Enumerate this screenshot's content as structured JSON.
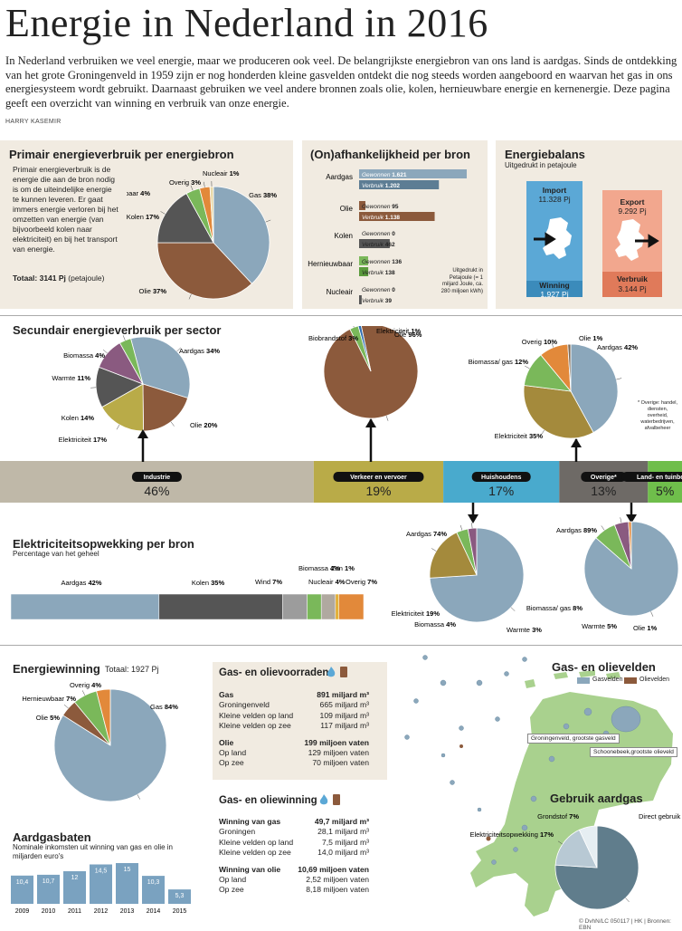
{
  "header": {
    "title": "Energie in Nederland in 2016",
    "intro": "In Nederland verbruiken we veel energie, maar we produceren ook veel. De belangrijkste energiebron van ons land is aardgas. Sinds de ontdekking van het grote Groningenveld in 1959 zijn er nog honderden kleine gasvelden ontdekt die nog steeds worden aangeboord en waarvan het gas in ons energiesysteem wordt gebruikt. Daarnaast gebruiken we veel andere bronnen zoals olie, kolen, hernieuwbare energie en kernenergie. Deze pagina geeft een overzicht van winning en verbruik van onze energie.",
    "byline": "HARRY KASEMIR"
  },
  "primair": {
    "title": "Primair energieverbruik per energiebron",
    "text": "Primair energieverbruik is de energie die aan de bron nodig is om de uiteindelijke energie te kunnen leveren. Er gaat immers energie verloren bij het omzetten van energie (van bijvoorbeeld kolen naar elektriciteit) en bij het transport van energie.",
    "total_label": "Totaal: 3141 Pj",
    "total_unit": "(petajoule)"
  },
  "onafh": {
    "title": "(On)afhankelijkheid per bron",
    "note": "Uitgedrukt in Petajoule (= 1 miljard Joule, ca. 280 miljoen kWh)"
  },
  "balans": {
    "title": "Energiebalans",
    "subtitle": "Uitgedrukt in petajoule",
    "import_label": "Import",
    "import_value": "11.328 Pj",
    "winning_label": "Winning",
    "winning_value": "1.927 Pj",
    "export_label": "Export",
    "export_value": "9.292 Pj",
    "verbruik_label": "Verbruik",
    "verbruik_value": "3.144 Pj"
  },
  "secundair": {
    "title": "Secundair energieverbruik per sector",
    "footnote": "* Overige: handel, diensten, overheid, waterbedrijven, afvalbeheer"
  },
  "elek": {
    "title": "Elektriciteitsopwekking per bron",
    "subtitle": "Percentage van het geheel"
  },
  "winning": {
    "title": "Energiewinning",
    "total": "Totaal: 1927 Pj"
  },
  "baten": {
    "title": "Aardgasbaten",
    "subtitle": "Nominale inkomsten uit winning van gas en olie in miljarden euro's"
  },
  "voorraden": {
    "title": "Gas- en olievoorraden",
    "rows": [
      {
        "label": "Gas",
        "value": "891 miljard m³",
        "bold": true
      },
      {
        "label": "Groningenveld",
        "value": "665 miljard m³"
      },
      {
        "label": "Kleine velden op land",
        "value": "109 miljard m³"
      },
      {
        "label": "Kleine velden op zee",
        "value": "117 miljard m³"
      },
      {
        "label": "Olie",
        "value": "199 miljoen vaten",
        "bold": true,
        "gap": true
      },
      {
        "label": "Op land",
        "value": "129 miljoen vaten"
      },
      {
        "label": "Op zee",
        "value": "70 miljoen vaten"
      }
    ]
  },
  "oliewinning": {
    "title": "Gas- en oliewinning",
    "rows": [
      {
        "label": "Winning van gas",
        "value": "49,7 miljard m³",
        "bold": true
      },
      {
        "label": "Groningen",
        "value": "28,1 miljard m³"
      },
      {
        "label": "Kleine velden op land",
        "value": "7,5 miljard m³"
      },
      {
        "label": "Kleine velden op zee",
        "value": "14,0 miljard m³"
      },
      {
        "label": "Winning van olie",
        "value": "10,69 miljoen vaten",
        "bold": true,
        "gap": true
      },
      {
        "label": "Op land",
        "value": "2,52 miljoen vaten"
      },
      {
        "label": "Op zee",
        "value": "8,18 miljoen vaten"
      }
    ]
  },
  "map": {
    "title": "Gas- en olievelden",
    "legend_gas": "Gasvelden",
    "legend_oil": "Olievelden",
    "label_groningen": "Groningenveld, grootste gasveld",
    "label_schoonebeek": "Schoonebeek,grootste olieveld",
    "gebruik_title": "Gebruik aardgas"
  },
  "credits": "© DvhN/LC 050117 | HK | Bronnen: EBN",
  "colors": {
    "gas": "#8ba7bb",
    "oil": "#8c5a3c",
    "coal": "#555555",
    "renew": "#7ab85a",
    "nuclear": "#e2893a",
    "other": "#a7a06a",
    "beige": "#f1ebe1"
  },
  "chart_data": [
    {
      "type": "pie",
      "title": "Primair energieverbruik per energiebron",
      "labels": [
        "Gas",
        "Olie",
        "Kolen",
        "Hernieuwbaar",
        "Overig",
        "Nucleair"
      ],
      "values": [
        38,
        37,
        17,
        4,
        3,
        1
      ],
      "value_labels": [
        "38%",
        "37%",
        "17%",
        "4%",
        "3%",
        "1%"
      ]
    },
    {
      "type": "bar",
      "title": "(On)afhankelijkheid per bron",
      "categories": [
        "Aardgas",
        "Olie",
        "Kolen",
        "Hernieuwbaar",
        "Nucleair"
      ],
      "series": [
        {
          "name": "Gewonnen",
          "values": [
            1621,
            95,
            0,
            136,
            0
          ],
          "value_labels": [
            "1.621",
            "95",
            "0",
            "136",
            "0"
          ]
        },
        {
          "name": "Verbruik",
          "values": [
            1202,
            1138,
            462,
            138,
            39
          ],
          "value_labels": [
            "1.202",
            "1.138",
            "462",
            "138",
            "39"
          ]
        }
      ]
    },
    {
      "type": "bar",
      "title": "Secundair energieverbruik per sector",
      "categories": [
        "Industrie",
        "Verkeer en vervoer",
        "Huishoudens",
        "Overige*",
        "Land- en tuinbouw"
      ],
      "values": [
        46,
        19,
        17,
        13,
        5
      ],
      "value_labels": [
        "46%",
        "19%",
        "17%",
        "13%",
        "5%"
      ]
    },
    {
      "type": "pie",
      "title": "Industrie",
      "labels": [
        "Aardgas",
        "Olie",
        "Elektriciteit",
        "Kolen",
        "Warmte",
        "Biomassa"
      ],
      "values": [
        34,
        20,
        17,
        14,
        11,
        4
      ],
      "value_labels": [
        "34%",
        "20%",
        "17%",
        "14%",
        "11%",
        "4%"
      ]
    },
    {
      "type": "pie",
      "title": "Verkeer en vervoer",
      "labels": [
        "Olie",
        "Biobrandstof",
        "Elektriciteit"
      ],
      "values": [
        96,
        3,
        1
      ],
      "value_labels": [
        "96%",
        "3%",
        "1%"
      ]
    },
    {
      "type": "pie",
      "title": "Overige",
      "labels": [
        "Aardgas",
        "Elektriciteit",
        "Biomassa/ gas",
        "Overig",
        "Olie"
      ],
      "values": [
        42,
        35,
        12,
        10,
        1
      ],
      "value_labels": [
        "42%",
        "35%",
        "12%",
        "10%",
        "1%"
      ]
    },
    {
      "type": "bar",
      "title": "Elektriciteitsopwekking per bron",
      "categories": [
        "Aardgas",
        "Kolen",
        "Wind",
        "Biomassa",
        "Nucleair",
        "Zon",
        "Overig"
      ],
      "values": [
        42,
        35,
        7,
        4,
        4,
        1,
        7
      ],
      "value_labels": [
        "42%",
        "35%",
        "7%",
        "4%",
        "4%",
        "1%",
        "7%"
      ]
    },
    {
      "type": "pie",
      "title": "Huishoudens",
      "labels": [
        "Aardgas",
        "Elektriciteit",
        "Biomassa",
        "Warmte"
      ],
      "values": [
        74,
        19,
        4,
        3
      ],
      "value_labels": [
        "74%",
        "19%",
        "4%",
        "3%"
      ]
    },
    {
      "type": "pie",
      "title": "Land- en tuinbouw",
      "labels": [
        "Aardgas",
        "Biomassa/ gas",
        "Warmte",
        "Olie"
      ],
      "values": [
        89,
        8,
        5,
        1
      ],
      "value_labels": [
        "89%",
        "8%",
        "5%",
        "1%"
      ]
    },
    {
      "type": "pie",
      "title": "Energiewinning",
      "labels": [
        "Gas",
        "Olie",
        "Hernieuwbaar",
        "Overig"
      ],
      "values": [
        84,
        5,
        7,
        4
      ],
      "value_labels": [
        "84%",
        "5%",
        "7%",
        "4%"
      ]
    },
    {
      "type": "bar",
      "title": "Aardgasbaten",
      "categories": [
        "2009",
        "2010",
        "2011",
        "2012",
        "2013",
        "2014",
        "2015"
      ],
      "values": [
        10.4,
        10.7,
        12,
        14.5,
        15,
        10.3,
        5.3
      ],
      "value_labels": [
        "10,4",
        "10,7",
        "12",
        "14,5",
        "15",
        "10,3",
        "5,3"
      ]
    },
    {
      "type": "pie",
      "title": "Gebruik aardgas",
      "labels": [
        "Direct gebruik",
        "Elektriciteitsopwekking",
        "Grondstof"
      ],
      "values": [
        76,
        17,
        7
      ],
      "value_labels": [
        "76%",
        "17%",
        "7%"
      ]
    }
  ]
}
